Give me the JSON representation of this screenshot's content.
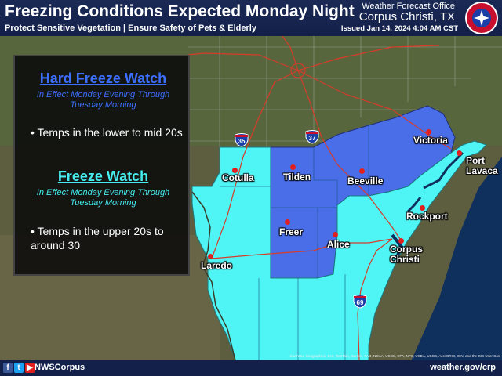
{
  "header": {
    "title": "Freezing Conditions Expected Monday Night",
    "subtitle": "Protect Sensitive Vegetation | Ensure Safety of Pets & Elderly",
    "office_label": "Weather Forecast Office",
    "office_name": "Corpus Christi, TX",
    "issued": "Issued Jan 14, 2024 4:04 AM CST"
  },
  "panel": {
    "hard_freeze": {
      "title": "Hard Freeze Watch",
      "effective": "In Effect Monday Evening Through Tuesday Morning",
      "bullet": "Temps in the lower to mid 20s"
    },
    "freeze": {
      "title": "Freeze Watch",
      "effective": "In Effect Monday Evening Through Tuesday Morning",
      "bullet": "Temps in the upper 20s to around 30"
    }
  },
  "colors": {
    "hard_freeze_fill": "#4a6de8",
    "freeze_fill": "#4ff5f5",
    "hard_freeze_text": "#3d6fff",
    "freeze_text": "#46ecf0",
    "header_bg": "#1a2a55"
  },
  "cities": {
    "victoria": "Victoria",
    "port_lavaca": "Port\nLavaca",
    "cotulla": "Cotulla",
    "tilden": "Tilden",
    "beeville": "Beeville",
    "rockport": "Rockport",
    "freer": "Freer",
    "alice": "Alice",
    "corpus_christi": "Corpus\nChristi",
    "laredo": "Laredo"
  },
  "highways": {
    "i35": "35",
    "i37": "37",
    "i69": "69"
  },
  "footer": {
    "handle": "NWSCorpus",
    "website": "weather.gov/crp",
    "credits": "Earthstar Geographics, Esri, TomTom, Garmin, FAO, NOAA, USGS, EPA, NPS, USDA, USGS, AeroGRID, IGN, and the GIS User Community",
    "social_icons": [
      "facebook-icon",
      "twitter-icon",
      "youtube-icon"
    ]
  }
}
